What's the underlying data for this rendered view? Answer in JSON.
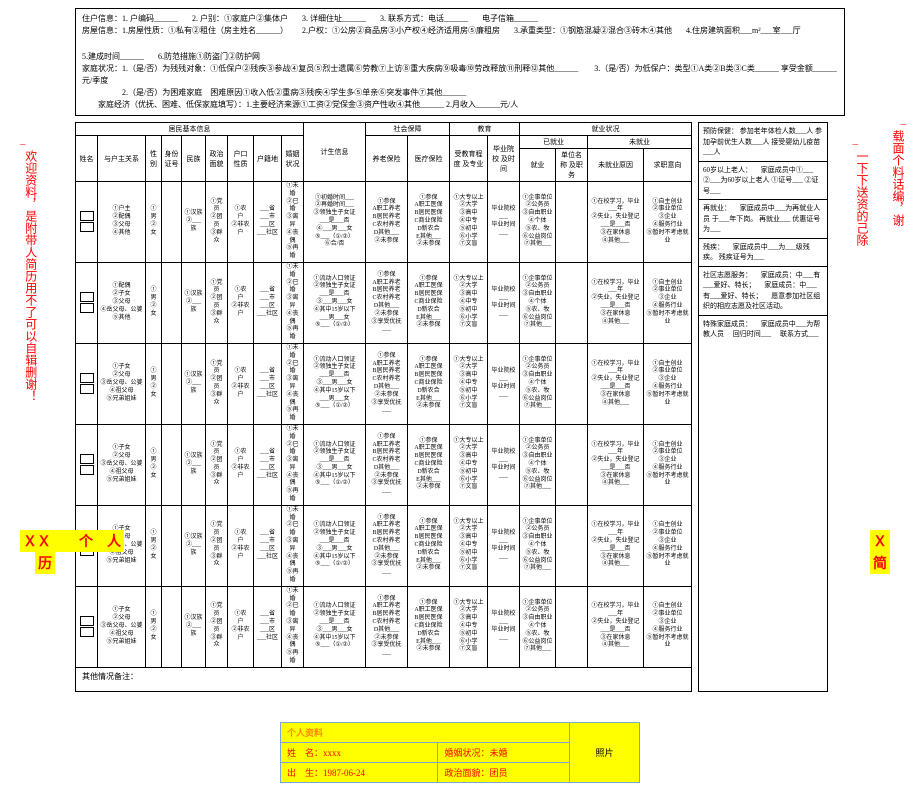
{
  "header": {
    "l1a": "住户信息：1. 户编码______",
    "l1b": "2. 户别：①家庭户②集体户",
    "l1c": "3. 详细住址______",
    "l1d": "3. 联系方式：电话______",
    "l1e": "电子信箱______",
    "l2a": "房屋信息：1.房屋性质：①私有②租住（房主姓名______）",
    "l2b": "2.户权：①公房②商品房③小产权④经济适用房⑤廉租房",
    "l2c": "3.承重类型：①钢筋混凝②混合③砖木④其他",
    "l2d": "4.住房建筑面积___m²___室___厅",
    "l2e": "5.建成时间______",
    "l2f": "6.防范措施①防盗门②防护网",
    "l3a": "家庭状况：1.（是/否）为残残对象：①低保户②残疾③参战④复员⑤烈士遗属⑥劳教⑦上访⑧重大疾病⑨吸毒⑩劳改释放⑪刑释⑫其他______",
    "l3b": "3.（是/否）为低保户：类型①A类②B类③C类______ 享受金额______元/季度",
    "l4a": "　　　　　2.（是/否）为困难家庭　困难原因①收入低②重病③残疾④学生多⑤单亲⑥突发事件⑦其他______",
    "l5a": "　　家庭经济（优抚、困难、低保家庭填写）：1.主要经济来源①工资②党保金③资产性收④其他______ 2.月收入______元/人"
  },
  "thead": {
    "g1": "居民基本信息",
    "g2": "计生信息",
    "g3": "社会保障",
    "g4": "教育",
    "g5": "就业状况",
    "c1": "姓名",
    "c2": "与户主关系",
    "c3": "性别",
    "c4": "身份\n证号",
    "c5": "民族",
    "c6": "政治\n面貌",
    "c7": "户口\n性质",
    "c8": "户籍地",
    "c9": "婚姻\n状况",
    "c10": "计生信息",
    "c11": "养老保险",
    "c12": "医疗保险",
    "c13": "受教育程度\n及专业",
    "c14": "毕业院校\n及时间",
    "g5a": "已就业",
    "g5b": "未就业",
    "c15": "就业",
    "c16": "单位名称\n及职务",
    "c17": "未就业原因",
    "c18": "求职意向"
  },
  "cells": {
    "rel1": "①户主\n②配偶\n③父母\n④其他",
    "rel2": "①配偶\n②子女\n③父母\n④岳父母、公婆\n⑤其他",
    "rel3": "①子女\n②父母\n③岳父母、公婆\n④祖父母\n⑤兄弟姐妹",
    "rel4": "①子女\n②父母\n③岳父母、公婆\n④祖父母\n⑤兄弟姐妹",
    "rel5": "①子女\n②父母\n③岳父母、公婆\n④祖父母\n⑤兄弟姐妹",
    "rel6": "①子女\n②父母\n③岳父母、公婆\n④祖父母\n⑤兄弟姐妹",
    "sex": "①男\n②女",
    "mz": "①汉族\n②___族",
    "zz": "①党员\n②团员\n③群众",
    "hk": "①农　户\n②非农户",
    "hj": "___省\n___市\n___区\n___社区",
    "hy": "①未婚\n②已婚\n③离异\n④丧偶\n⑤再婚",
    "js1": "①初婚时间___\n②再婚时间___\n③领独生子女证\n___是___否\n④___男___女\n⑤___（①/②）\n⑥合/否",
    "js2": "①流动人口领证\n②领独生子女证\n___是___否\n③___男___女\n④其中15岁以下\n___男___女\n⑤___（①/②）",
    "js3": "①流动人口领证\n②领独生子女证\n___是___否\n③___男___女\n④其中15岁以下\n⑤___（①/②）",
    "yl1": "①参保\nA职工养老\nB居民养老\nC农村养老\nD其他___\n②未参保",
    "yl2": "①参保\nA职工养老\nB居民养老\nC农村养老\nD其他___\n②未参保\n③享受优抚___",
    "ylr": "①参保\nA职工医保\nB居民医保\nC商业保险\nD新农合\nE其他___\n②未参保",
    "edu": "①大专以上\n②大学\n③高中\n④中专\n⑤初中\n⑥小学\n⑦文盲",
    "sch": "毕业院校\n___\n毕业时间\n___",
    "jy": "①企事单位\n②公务员\n③自由职业\n④个体\n⑤农、牧\n⑥公益岗位\n⑦其他___",
    "wjy": "①在校学习，毕业\n___年\n②失业，失业登记\n___是___否\n③在家休息\n④其他___",
    "qz": "①自主创业\n②事业单位\n③企业\n④服务行业\n⑤暂时不考虑就业"
  },
  "side": {
    "b1": "预防保健：\n参加老年体检人数___人\n参加孕前优生人数___人\n接受婴幼儿疫苗___人",
    "b2": "60岁以上老人：\n　家庭成员中①___\n②___为60岁以上老人\n①证号___\n②证号___",
    "b3": "再就业：\n　家庭成员中___为再就业人员\n于___年下岗。\n再就业___\n优惠证号为___",
    "b4": "残疾：\n　家庭成员中___为___级残疾。\n残疾证号为___",
    "b5": "社区志愿服务：\n　家庭成员：中___有___爱好、特长；\n　家庭成员：中___有___爱好、特长；\n　愿意参加社区组织的相应志愿及社区活动。",
    "b6": "特殊家庭成员：\n　家庭成员中___为帮教人员\n　回归时间___\n　联系方式___"
  },
  "remark": "其他情况备注：",
  "vleft": "欢迎资料，是附带人简历用不了可以自辑删谢！",
  "vright1": "一下下送资的己除",
  "vright2": "载面个料话编，谢",
  "botL": "ＸＸ　　个　人",
  "botL2": "历",
  "botR": "Ｘ",
  "botR2": "简",
  "resume": {
    "t": "个人资料",
    "r1a": "姓　名：xxxx",
    "r1b": "婚姻状况：未婚",
    "r2a": "出　生：1987-06-24",
    "r2b": "政治面貌：团员",
    "photo": "照片"
  }
}
